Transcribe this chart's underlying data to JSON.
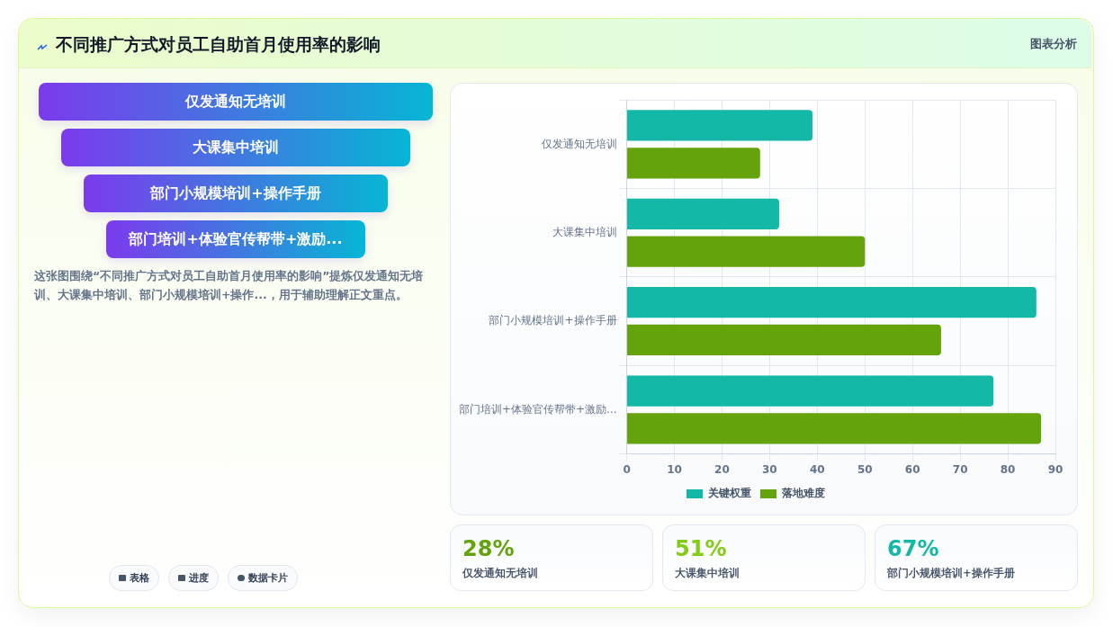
{
  "chart_data": [
    {
      "type": "other",
      "title": "不同推广方式对员工自助首月使用率的影响",
      "categories": [
        "仅发通知无培训",
        "大课集中培训",
        "部门小规模培训+操作手册",
        "部门培训+体验官传帮带+激励..."
      ],
      "annotations": [
        "图表分析",
        "这张图围绕“不同推广方式对员工自助首月使用率的影响”提炼仅发通知无培训、大课集中培训、部门小规模培训+操作...，用于辅助理解正文重点。",
        "表格",
        "进度",
        "数据卡片"
      ]
    },
    {
      "type": "bar",
      "orientation": "horizontal",
      "categories": [
        "仅发通知无培训",
        "大课集中培训",
        "部门小规模培训+操作手册",
        "部门培训+体验官传帮带+激励..."
      ],
      "series": [
        {
          "name": "关键权重",
          "color": "#14b8a6",
          "values": [
            39,
            32,
            86,
            77
          ]
        },
        {
          "name": "落地难度",
          "color": "#65a30d",
          "values": [
            28,
            50,
            66,
            87
          ]
        }
      ],
      "xlim": [
        0,
        90
      ],
      "xticks": [
        0,
        10,
        20,
        30,
        40,
        50,
        60,
        70,
        80,
        90
      ],
      "grid": true,
      "legend": "bottom"
    },
    {
      "type": "other",
      "categories": [
        "仅发通知无培训",
        "大课集中培训",
        "部门小规模培训+操作手册"
      ],
      "annotations": [
        "28%",
        "51%",
        "67%"
      ]
    }
  ]
}
